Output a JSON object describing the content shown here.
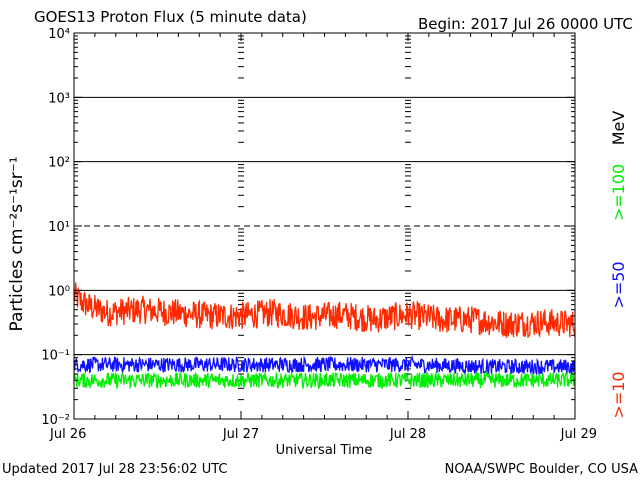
{
  "header": {
    "title": "GOES13 Proton Flux (5 minute data)",
    "begin": "Begin: 2017 Jul 26 0000 UTC"
  },
  "footer": {
    "updated": "Updated 2017 Jul 28 23:56:02 UTC",
    "credit": "NOAA/SWPC Boulder, CO USA"
  },
  "chart_data": {
    "type": "line",
    "title": "GOES13 Proton Flux (5 minute data)",
    "xlabel": "Universal Time",
    "ylabel": "Particles cm⁻²s⁻¹sr⁻¹",
    "y_scale": "log",
    "ylim": [
      0.01,
      10000
    ],
    "y_ticks": [
      {
        "value": 0.01,
        "label": "10⁻²"
      },
      {
        "value": 0.1,
        "label": "10⁻¹"
      },
      {
        "value": 1,
        "label": "10⁰"
      },
      {
        "value": 10,
        "label": "10¹"
      },
      {
        "value": 100,
        "label": "10²"
      },
      {
        "value": 1000,
        "label": "10³"
      },
      {
        "value": 10000,
        "label": "10⁴"
      }
    ],
    "x_range_days": [
      0,
      3
    ],
    "x_ticks": [
      "Jul 26",
      "Jul 27",
      "Jul 28",
      "Jul 29"
    ],
    "legend_unit": "MeV",
    "grid": true,
    "series": [
      {
        "name": ">=10",
        "color": "#ff2a00",
        "x_day": [
          0,
          0.05,
          0.1,
          0.2,
          0.4,
          0.6,
          0.8,
          1.0,
          1.2,
          1.4,
          1.6,
          1.8,
          2.0,
          2.2,
          2.4,
          2.6,
          2.8,
          3.0
        ],
        "values": [
          0.85,
          0.65,
          0.55,
          0.45,
          0.5,
          0.45,
          0.4,
          0.4,
          0.45,
          0.38,
          0.42,
          0.35,
          0.42,
          0.35,
          0.35,
          0.3,
          0.32,
          0.3
        ]
      },
      {
        "name": ">=50",
        "color": "#1010ff",
        "x_day": [
          0,
          0.5,
          1.0,
          1.5,
          2.0,
          2.5,
          3.0
        ],
        "values": [
          0.07,
          0.07,
          0.07,
          0.07,
          0.07,
          0.065,
          0.065
        ]
      },
      {
        "name": ">=100",
        "color": "#00ee00",
        "x_day": [
          0,
          0.5,
          1.0,
          1.5,
          2.0,
          2.5,
          3.0
        ],
        "values": [
          0.04,
          0.04,
          0.04,
          0.04,
          0.04,
          0.04,
          0.04
        ]
      }
    ]
  }
}
